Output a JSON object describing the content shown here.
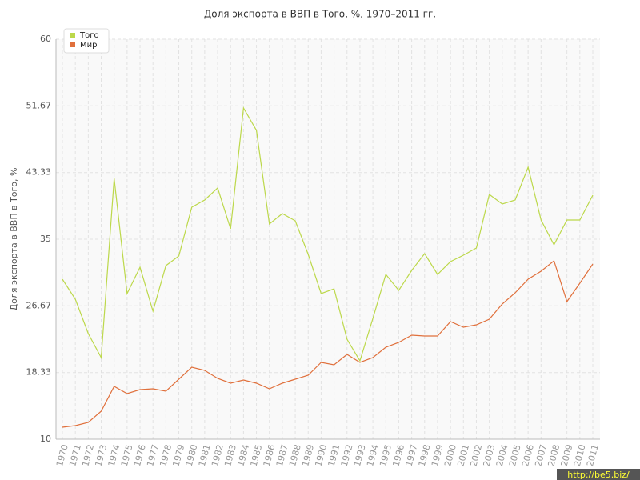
{
  "chart_data": {
    "type": "line",
    "title": "Доля экспорта в ВВП в Того, %, 1970–2011 гг.",
    "y_label": "Доля экспорта в ВВП в Того, %",
    "watermark": "http://be5.biz/",
    "categories": [
      "1970",
      "1971",
      "1972",
      "1973",
      "1974",
      "1975",
      "1976",
      "1977",
      "1978",
      "1979",
      "1980",
      "1981",
      "1982",
      "1983",
      "1984",
      "1985",
      "1986",
      "1987",
      "1988",
      "1989",
      "1990",
      "1991",
      "1992",
      "1993",
      "1994",
      "1995",
      "1996",
      "1997",
      "1998",
      "1999",
      "2000",
      "2001",
      "2002",
      "2003",
      "2004",
      "2005",
      "2006",
      "2007",
      "2008",
      "2009",
      "2010",
      "2011"
    ],
    "series": [
      {
        "name": "Того",
        "color": "#bcd84a",
        "values": [
          30.0,
          27.5,
          23.2,
          20.2,
          42.6,
          28.2,
          31.5,
          26.0,
          31.7,
          32.9,
          39.0,
          39.9,
          41.4,
          36.3,
          51.4,
          48.6,
          36.9,
          38.2,
          37.3,
          33.1,
          28.2,
          28.8,
          22.5,
          19.8,
          25.1,
          30.6,
          28.6,
          31.1,
          33.2,
          30.6,
          32.2,
          33.0,
          33.9,
          40.6,
          39.4,
          39.9,
          44.0,
          37.4,
          34.3,
          37.4,
          37.4,
          40.5
        ]
      },
      {
        "name": "Мир",
        "color": "#e0703c",
        "values": [
          11.5,
          11.7,
          12.1,
          13.5,
          16.6,
          15.7,
          16.2,
          16.3,
          16.0,
          17.5,
          19.0,
          18.6,
          17.6,
          17.0,
          17.4,
          17.0,
          16.3,
          17.0,
          17.5,
          18.0,
          19.6,
          19.3,
          20.6,
          19.6,
          20.2,
          21.5,
          22.1,
          23.0,
          22.9,
          22.9,
          24.7,
          24.0,
          24.3,
          25.0,
          26.9,
          28.3,
          30.0,
          31.0,
          32.3,
          27.2,
          29.5,
          31.9
        ]
      }
    ],
    "ylim": [
      10,
      60
    ],
    "yticks": [
      10,
      18.33,
      26.67,
      35,
      43.33,
      51.67,
      60
    ],
    "grid": true,
    "legend": "top-left"
  }
}
